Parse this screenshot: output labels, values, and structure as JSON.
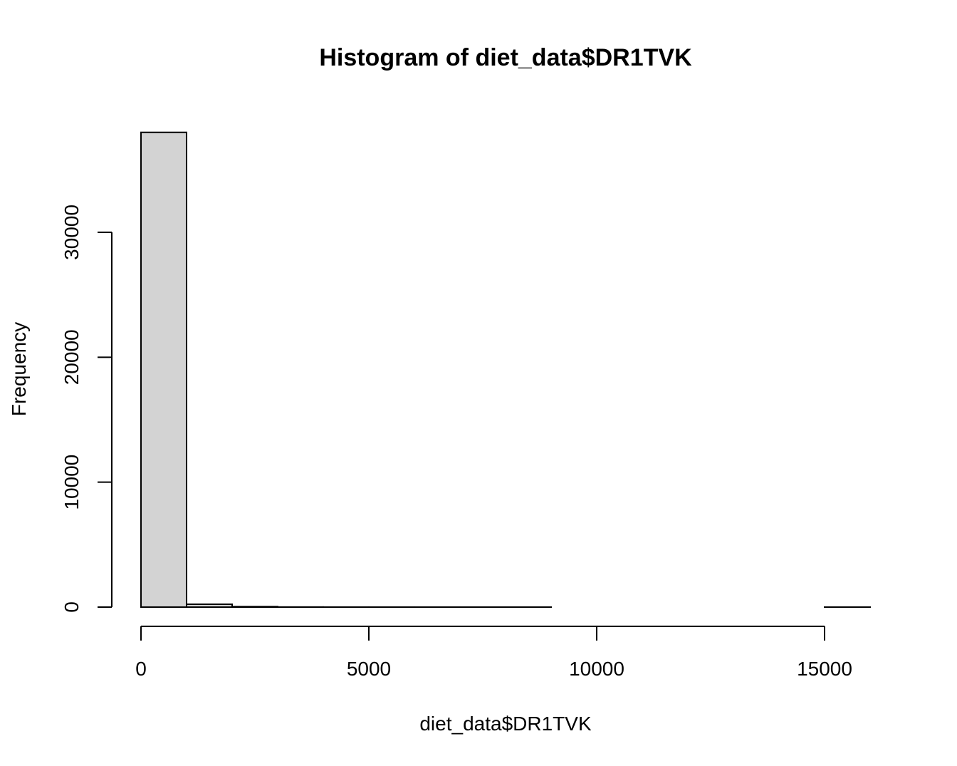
{
  "chart_data": {
    "type": "bar",
    "title": "Histogram of diet_data$DR1TVK",
    "xlabel": "diet_data$DR1TVK",
    "ylabel": "Frequency",
    "bin_edges": [
      0,
      1000,
      2000,
      3000,
      4000,
      5000,
      6000,
      7000,
      8000,
      9000,
      10000,
      11000,
      12000,
      13000,
      14000,
      15000,
      16000
    ],
    "values": [
      38000,
      230,
      40,
      8,
      3,
      2,
      1,
      1,
      1,
      0,
      0,
      0,
      0,
      0,
      0,
      1
    ],
    "xlim": [
      0,
      16000
    ],
    "ylim": [
      0,
      38000
    ],
    "x_ticks": [
      0,
      5000,
      10000,
      15000
    ],
    "x_tick_labels": [
      "0",
      "5000",
      "10000",
      "15000"
    ],
    "y_ticks": [
      0,
      10000,
      20000,
      30000
    ],
    "y_tick_labels": [
      "0",
      "10000",
      "20000",
      "30000"
    ],
    "bar_fill": "#d3d3d3",
    "bar_stroke": "#000000",
    "grid": false,
    "legend": "none"
  }
}
